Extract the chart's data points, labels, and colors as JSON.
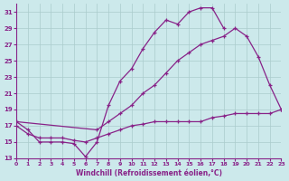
{
  "xlabel": "Windchill (Refroidissement éolien,°C)",
  "xlim": [
    0,
    23
  ],
  "ylim": [
    13,
    32
  ],
  "yticks": [
    13,
    15,
    17,
    19,
    21,
    23,
    25,
    27,
    29,
    31
  ],
  "xticks": [
    0,
    1,
    2,
    3,
    4,
    5,
    6,
    7,
    8,
    9,
    10,
    11,
    12,
    13,
    14,
    15,
    16,
    17,
    18,
    19,
    20,
    21,
    22,
    23
  ],
  "bg_color": "#cce9eb",
  "grid_color": "#aacccc",
  "line_color": "#882288",
  "line1_x": [
    0,
    1,
    2,
    3,
    4,
    5,
    6,
    7,
    8,
    9,
    10,
    11,
    12,
    13,
    14,
    15,
    16,
    17,
    18
  ],
  "line1_y": [
    17.5,
    16.5,
    15.0,
    15.0,
    15.0,
    14.8,
    13.2,
    15.0,
    19.5,
    22.5,
    24.0,
    26.5,
    28.5,
    30.0,
    29.5,
    31.0,
    31.5,
    31.5,
    29.0
  ],
  "line2_x": [
    0,
    7,
    8,
    9,
    10,
    11,
    12,
    13,
    14,
    15,
    16,
    17,
    18,
    19,
    20,
    21,
    22,
    23
  ],
  "line2_y": [
    17.5,
    16.5,
    17.5,
    18.5,
    19.5,
    21.0,
    22.0,
    23.5,
    25.0,
    26.0,
    27.0,
    27.5,
    28.0,
    29.0,
    28.0,
    25.5,
    22.0,
    19.0
  ],
  "line3_x": [
    0,
    1,
    2,
    3,
    4,
    5,
    6,
    7,
    8,
    9,
    10,
    11,
    12,
    13,
    14,
    15,
    16,
    17,
    18,
    19,
    20,
    21,
    22,
    23
  ],
  "line3_y": [
    17.0,
    16.0,
    15.5,
    15.5,
    15.5,
    15.2,
    15.0,
    15.5,
    16.0,
    16.5,
    17.0,
    17.2,
    17.5,
    17.5,
    17.5,
    17.5,
    17.5,
    18.0,
    18.2,
    18.5,
    18.5,
    18.5,
    18.5,
    19.0
  ]
}
